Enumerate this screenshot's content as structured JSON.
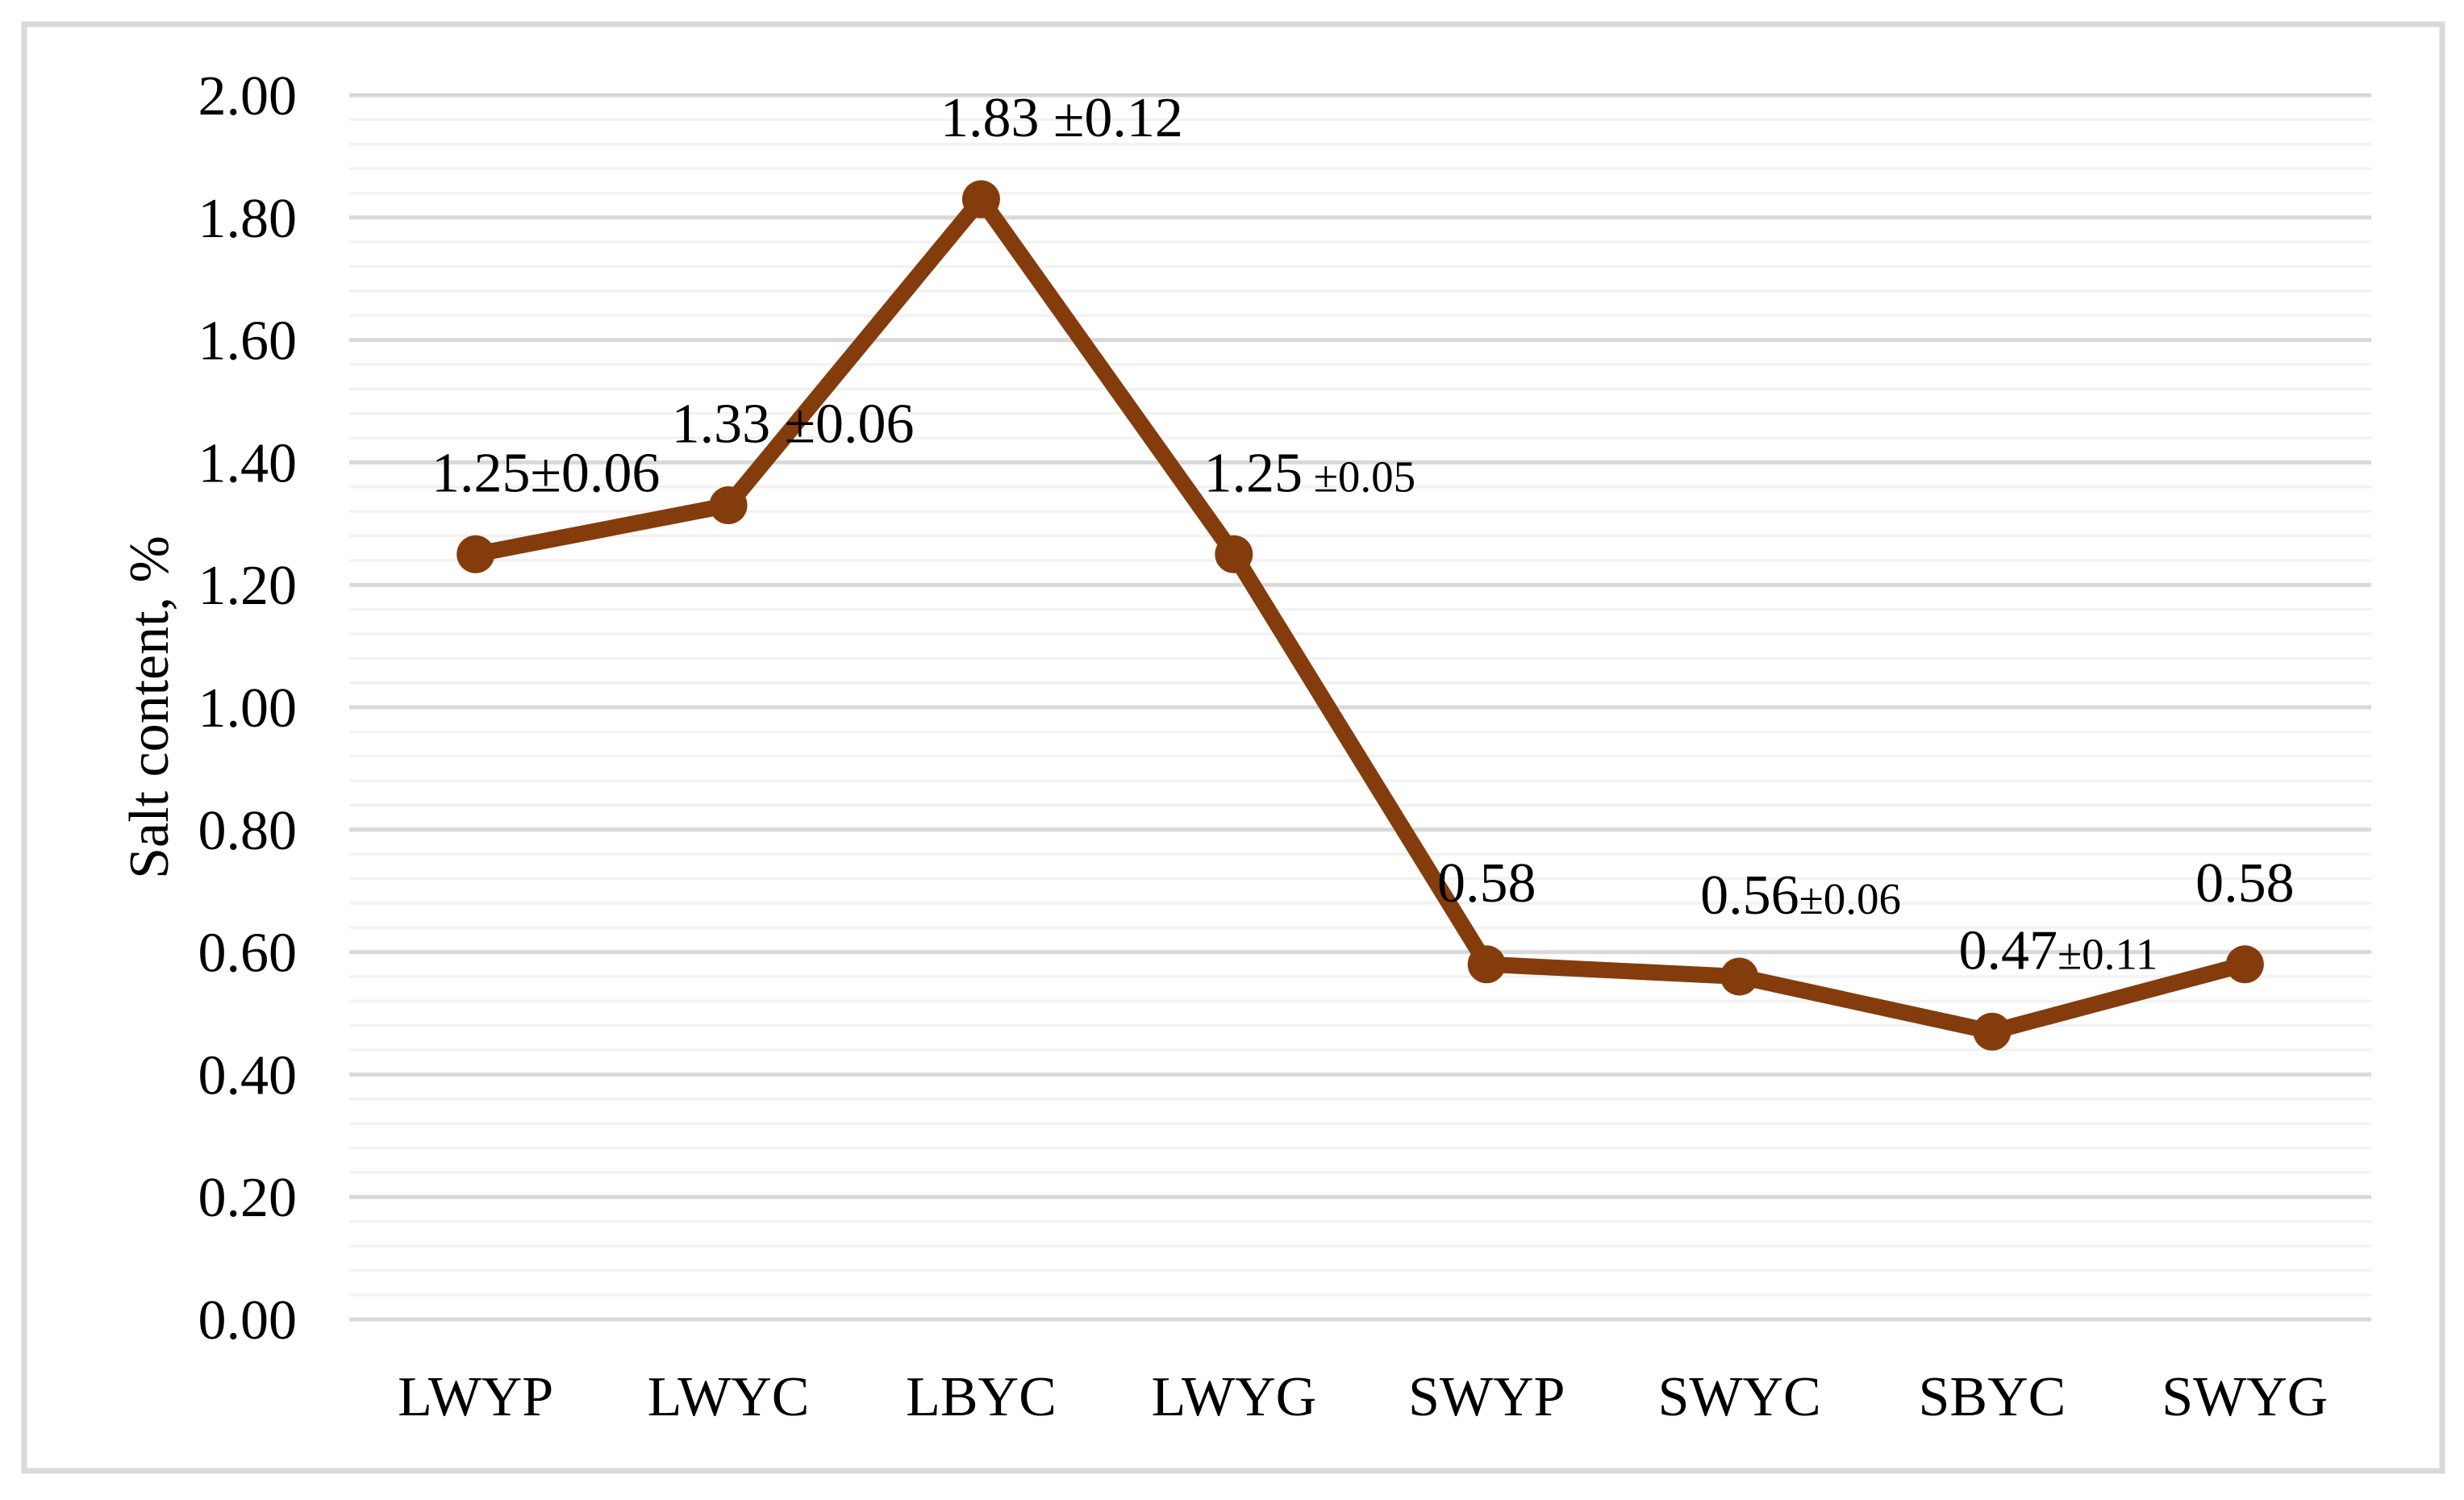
{
  "chart_data": {
    "type": "line",
    "title": "",
    "xlabel": "",
    "ylabel": "Salt content, %",
    "ylim": [
      0.0,
      2.0
    ],
    "y_major_step": 0.2,
    "y_minor_step": 0.04,
    "y_tick_labels": [
      "0.00",
      "0.20",
      "0.40",
      "0.60",
      "0.80",
      "1.00",
      "1.20",
      "1.40",
      "1.60",
      "1.80",
      "2.00"
    ],
    "categories": [
      "LWYP",
      "LWYC",
      "LBYC",
      "LWYG",
      "SWYP",
      "SWYC",
      "SBYC",
      "SWYG"
    ],
    "series": [
      {
        "name": "Salt content, %",
        "values": [
          1.25,
          1.33,
          1.83,
          1.25,
          0.58,
          0.56,
          0.47,
          0.58
        ]
      }
    ],
    "point_labels": [
      {
        "main": "1.25",
        "pm": "±0.06",
        "pm_small": false,
        "dx": 87
      },
      {
        "main": "1.33",
        "pm": " ±0.06",
        "pm_small": false,
        "dx": 80
      },
      {
        "main": "1.83",
        "pm": " ±0.12",
        "pm_small": false,
        "dx": 100
      },
      {
        "main": "1.25",
        "pm": " ±0.05",
        "pm_small": true,
        "dx": 94
      },
      {
        "main": "0.58",
        "pm": "",
        "pm_small": false,
        "dx": 0
      },
      {
        "main": "0.56",
        "pm": "±0.06",
        "pm_small": true,
        "dx": 76
      },
      {
        "main": "0.47",
        "pm": "±0.11",
        "pm_small": true,
        "dx": 82
      },
      {
        "main": "0.58",
        "pm": "",
        "pm_small": false,
        "dx": 0
      }
    ],
    "legend_position": "none",
    "grid": {
      "major_on": true,
      "minor_on": true
    },
    "colors": {
      "line": "#843C0C",
      "marker": "#843C0C",
      "major_gridline": "#D9D9D9",
      "minor_gridline": "#F2F2F2",
      "frame_border": "#D9D9D9",
      "text": "#000000",
      "background": "#FFFFFF"
    }
  }
}
